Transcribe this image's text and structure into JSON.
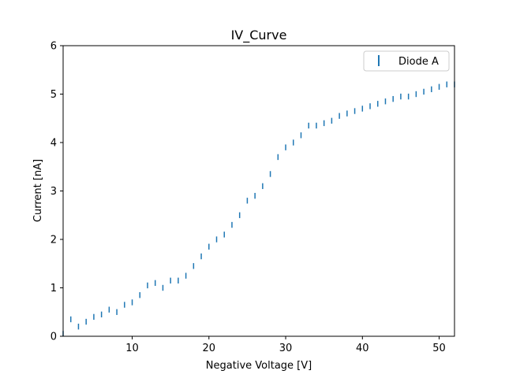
{
  "chart_data": {
    "type": "line",
    "title": "IV_Curve",
    "xlabel": "Negative Voltage [V]",
    "ylabel": "Current [nA]",
    "xlim": [
      1,
      52
    ],
    "ylim": [
      0,
      6
    ],
    "xticks": [
      10,
      20,
      30,
      40,
      50
    ],
    "yticks": [
      0,
      1,
      2,
      3,
      4,
      5,
      6
    ],
    "grid": false,
    "legend_position": "top-right",
    "color": "#1f77b4",
    "series": [
      {
        "name": "Diode A",
        "style": "errorbar",
        "x": [
          1.0,
          2.0,
          3.0,
          4.0,
          5.0,
          6.0,
          7.0,
          8.0,
          9.0,
          10.0,
          11.0,
          12.0,
          13.0,
          14.0,
          15.0,
          16.0,
          17.0,
          18.0,
          19.0,
          20.0,
          21.0,
          22.0,
          23.0,
          24.0,
          25.0,
          26.0,
          27.0,
          28.0,
          29.0,
          30.0,
          31.0,
          32.0,
          33.0,
          34.0,
          35.0,
          36.0,
          37.0,
          38.0,
          39.0,
          40.0,
          41.0,
          42.0,
          43.0,
          44.0,
          45.0,
          46.0,
          47.0,
          48.0,
          49.0,
          50.0,
          51.0,
          52.0
        ],
        "y": [
          0.05,
          0.35,
          0.2,
          0.3,
          0.4,
          0.45,
          0.55,
          0.5,
          0.65,
          0.7,
          0.85,
          1.05,
          1.1,
          1.0,
          1.15,
          1.15,
          1.25,
          1.45,
          1.65,
          1.85,
          2.0,
          2.1,
          2.3,
          2.5,
          2.8,
          2.9,
          3.1,
          3.35,
          3.7,
          3.9,
          4.0,
          4.15,
          4.35,
          4.35,
          4.4,
          4.45,
          4.55,
          4.6,
          4.65,
          4.7,
          4.75,
          4.8,
          4.85,
          4.9,
          4.95,
          4.95,
          5.0,
          5.05,
          5.1,
          5.15,
          5.2,
          5.2
        ],
        "yerr": [
          0.06,
          0.06,
          0.06,
          0.06,
          0.06,
          0.06,
          0.06,
          0.06,
          0.06,
          0.06,
          0.06,
          0.06,
          0.06,
          0.06,
          0.06,
          0.06,
          0.06,
          0.06,
          0.06,
          0.06,
          0.06,
          0.06,
          0.06,
          0.06,
          0.06,
          0.06,
          0.06,
          0.06,
          0.06,
          0.06,
          0.06,
          0.06,
          0.06,
          0.06,
          0.06,
          0.06,
          0.06,
          0.06,
          0.06,
          0.06,
          0.06,
          0.06,
          0.06,
          0.06,
          0.06,
          0.06,
          0.06,
          0.06,
          0.06,
          0.06,
          0.06,
          0.06
        ]
      }
    ]
  }
}
